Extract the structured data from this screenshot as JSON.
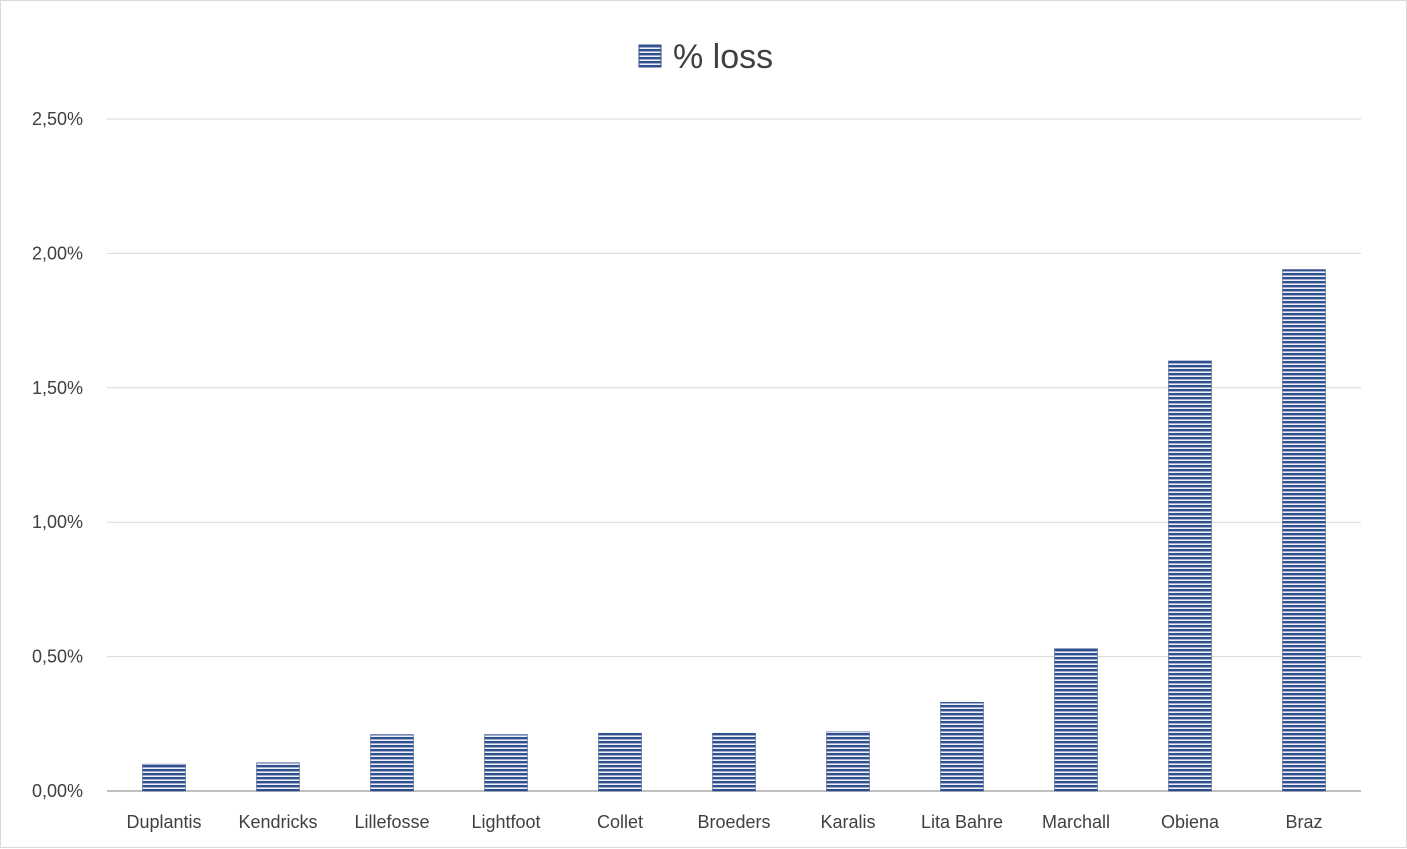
{
  "chart_data": {
    "type": "bar",
    "categories": [
      "Duplantis",
      "Kendricks",
      "Lillefosse",
      "Lightfoot",
      "Collet",
      "Broeders",
      "Karalis",
      "Lita Bahre",
      "Marchall",
      "Obiena",
      "Braz"
    ],
    "series": [
      {
        "name": "% loss",
        "values": [
          0.1,
          0.105,
          0.21,
          0.21,
          0.215,
          0.215,
          0.22,
          0.33,
          0.53,
          1.6,
          1.94
        ],
        "color": "#2f4f8f"
      }
    ],
    "y_ticks": [
      "0,00%",
      "0,50%",
      "1,00%",
      "1,50%",
      "2,00%",
      "2,50%"
    ],
    "ylim": [
      0,
      2.5
    ],
    "y_unit": "percent",
    "grid": true,
    "legend_position": "top-center",
    "bar_pattern": "horizontal-stripes"
  }
}
